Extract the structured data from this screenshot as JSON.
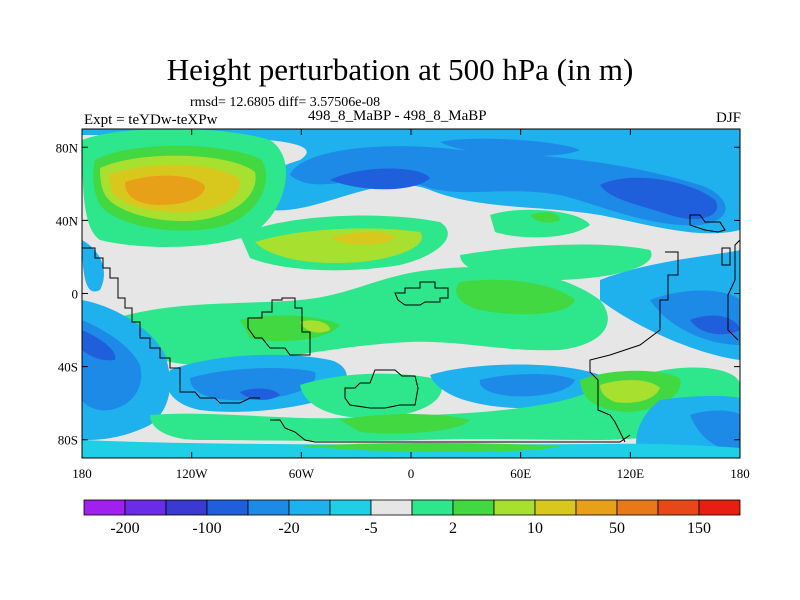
{
  "figure": {
    "title": "Height perturbation at 500 hPa (in m)",
    "stats": "rmsd= 12.6805 diff= 3.57506e-08",
    "experiment": "Expt = teYDw-teXPw",
    "runs": "498_8_MaBP - 498_8_MaBP",
    "season": "DJF"
  },
  "axes": {
    "lon_ticks": [
      {
        "lon": -180,
        "label": "180"
      },
      {
        "lon": -120,
        "label": "120W"
      },
      {
        "lon": -60,
        "label": "60W"
      },
      {
        "lon": 0,
        "label": "0"
      },
      {
        "lon": 60,
        "label": "60E"
      },
      {
        "lon": 120,
        "label": "120E"
      },
      {
        "lon": 180,
        "label": "180"
      }
    ],
    "lat_ticks": [
      {
        "lat": 80,
        "label": "80N"
      },
      {
        "lat": 40,
        "label": "40N"
      },
      {
        "lat": 0,
        "label": "0"
      },
      {
        "lat": -40,
        "label": "40S"
      },
      {
        "lat": -80,
        "label": "80S"
      }
    ],
    "lon_range": [
      -180,
      180
    ],
    "lat_range": [
      -90,
      90
    ]
  },
  "colorbar": {
    "colors": [
      "#a020f0",
      "#6a2ce6",
      "#3a3ad2",
      "#1f5fdc",
      "#1e8ae8",
      "#1fb0ee",
      "#1fcfe6",
      "#e6e6e6",
      "#2ee68c",
      "#42d842",
      "#a8e030",
      "#d8c81e",
      "#e8a018",
      "#e87818",
      "#e84818",
      "#e81e10"
    ],
    "labels": [
      "-200",
      "-100",
      "-20",
      "-5",
      "2",
      "10",
      "50",
      "150"
    ]
  },
  "field_colors": {
    "neutral": "#e6e6e6",
    "strong_neg": "#1f5fdc",
    "neg": "#1e8ae8",
    "weak_neg": "#1fb0ee",
    "faint_neg": "#1fcfe6",
    "faint_pos": "#2ee68c",
    "pos": "#42d842",
    "mid_pos": "#a8e030",
    "strong_pos": "#d8c81e",
    "max_pos": "#e8a018"
  }
}
